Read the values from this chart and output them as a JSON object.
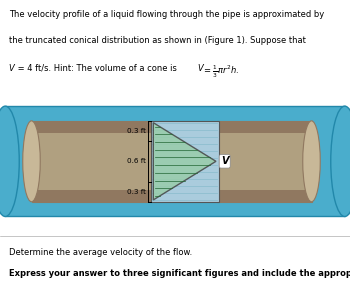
{
  "header_bg": "#cce4f0",
  "fig_bg": "#ffffff",
  "pipe_blue": "#4aadcc",
  "pipe_blue_dark": "#2288aa",
  "pipe_tan": "#b0a080",
  "pipe_tan_dark": "#907860",
  "pipe_tan_light": "#c8b898",
  "cone_bg": "#b8d8e8",
  "cone_line": "#559966",
  "cone_edge": "#444444",
  "bracket_color": "#000000",
  "text_color": "#000000",
  "line1": "The velocity profile of a liquid flowing through the pipe is approximated by",
  "line2": "the truncated conical distribution as shown in (Figure 1). Suppose that",
  "line3a": "V",
  "line3b": " = 4 ft/s. Hint: The volume of a cone is ",
  "line3c": "V",
  "line3d": "= ",
  "dim_labels": [
    "0.3 ft",
    "0.6 ft",
    "0.3 ft"
  ],
  "v_label": "V",
  "bottom1": "Determine the average velocity of the flow.",
  "bottom2": "Express your answer to three significant figures and include the appropriate units."
}
